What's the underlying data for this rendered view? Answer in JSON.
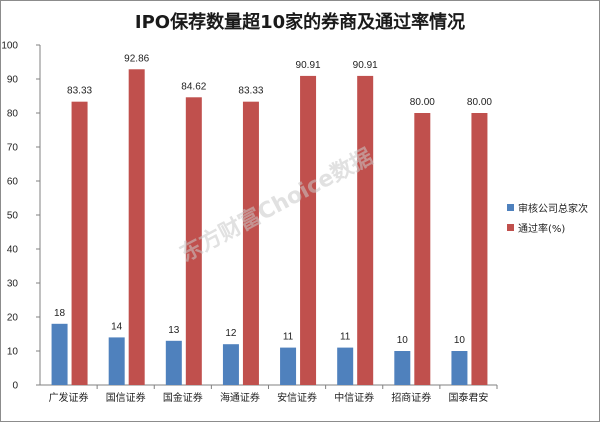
{
  "chart_data": {
    "type": "bar",
    "title": "IPO保荐数量超10家的券商及通过率情况",
    "categories": [
      "广发证券",
      "国信证券",
      "国金证券",
      "海通证券",
      "安信证券",
      "中信证券",
      "招商证券",
      "国泰君安"
    ],
    "series": [
      {
        "name": "审核公司总家次",
        "color": "#4f81bd",
        "values": [
          18,
          14,
          13,
          12,
          11,
          11,
          10,
          10
        ],
        "labels": [
          "18",
          "14",
          "13",
          "12",
          "11",
          "11",
          "10",
          "10"
        ]
      },
      {
        "name": "通过率(%)",
        "color": "#c0504d",
        "values": [
          83.33,
          92.86,
          84.62,
          83.33,
          90.91,
          90.91,
          80.0,
          80.0
        ],
        "labels": [
          "83.33",
          "92.86",
          "84.62",
          "83.33",
          "90.91",
          "90.91",
          "80.00",
          "80.00"
        ]
      }
    ],
    "ylim": [
      0,
      100
    ],
    "yticks": [
      0,
      10,
      20,
      30,
      40,
      50,
      60,
      70,
      80,
      90,
      100
    ],
    "grid": false,
    "legend_position": "right"
  },
  "watermark": "东方财富Choice数据"
}
